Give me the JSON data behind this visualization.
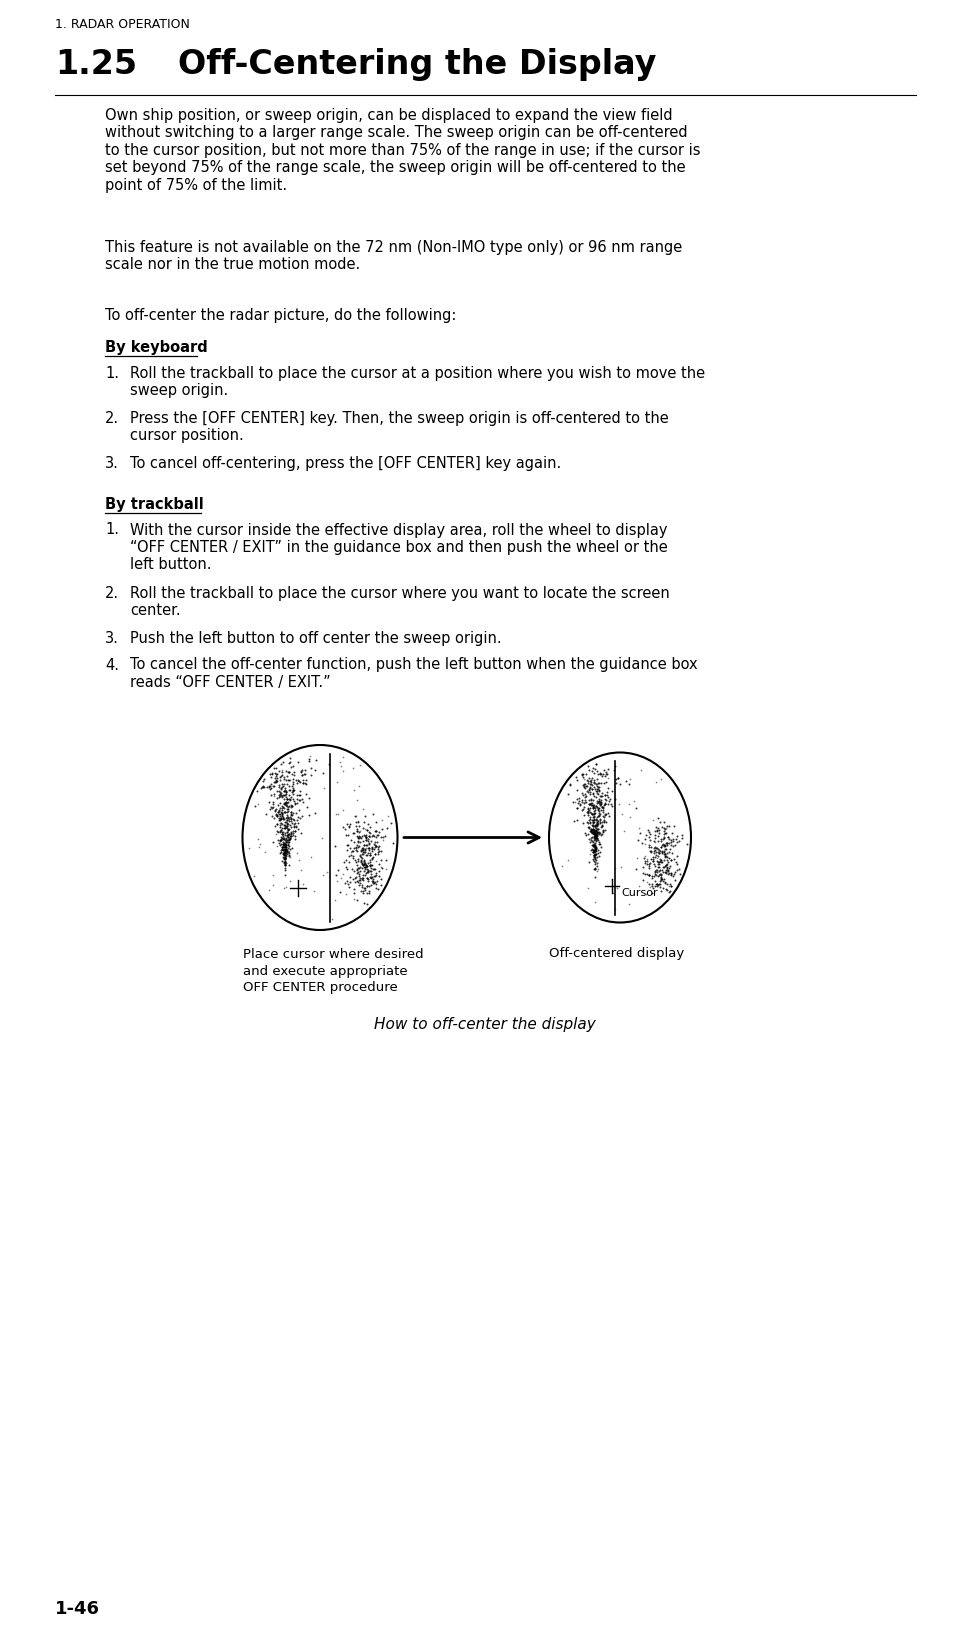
{
  "page_header": "1. RADAR OPERATION",
  "section_num": "1.25",
  "section_title": "Off-Centering the Display",
  "by_keyboard_label": "By keyboard",
  "keyboard_steps": [
    [
      "1.",
      "Roll the trackball to place the cursor at a position where you wish to move the\nsweep origin."
    ],
    [
      "2.",
      "Press the [OFF CENTER] key. Then, the sweep origin is off-centered to the\ncursor position."
    ],
    [
      "3.",
      "To cancel off-centering, press the [OFF CENTER] key again."
    ]
  ],
  "by_trackball_label": "By trackball",
  "trackball_steps": [
    [
      "1.",
      "With the cursor inside the effective display area, roll the wheel to display\n“OFF CENTER / EXIT” in the guidance box and then push the wheel or the\nleft button."
    ],
    [
      "2.",
      "Roll the trackball to place the cursor where you want to locate the screen\ncenter."
    ],
    [
      "3.",
      "Push the left button to off center the sweep origin."
    ],
    [
      "4.",
      "To cancel the off-center function, push the left button when the guidance box\nreads “OFF CENTER / EXIT.”"
    ]
  ],
  "caption_left": "Place cursor where desired\nand execute appropriate\nOFF CENTER procedure",
  "caption_right": "Off-centered display",
  "figure_caption": "How to off-center the display",
  "page_number": "1-46",
  "bg_color": "#ffffff",
  "text_color": "#000000"
}
